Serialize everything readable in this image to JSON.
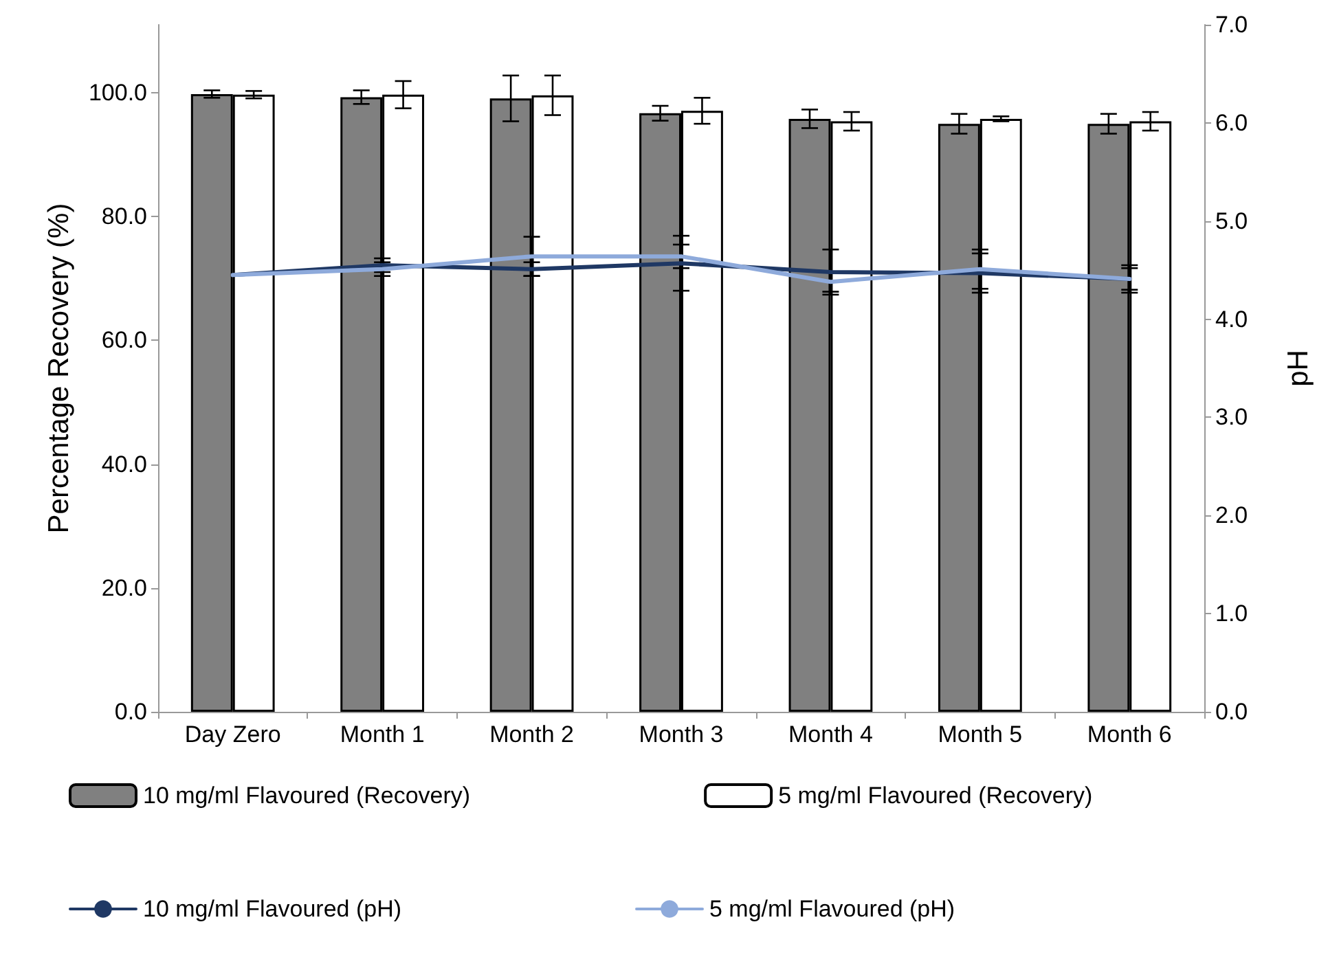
{
  "chart_data": {
    "type": "bar",
    "ylabel": "Percentage Recovery (%)",
    "y2label": "pH",
    "categories": [
      "Day Zero",
      "Month 1",
      "Month 2",
      "Month 3",
      "Month 4",
      "Month 5",
      "Month 6"
    ],
    "series": [
      {
        "name": "10 mg/ml Flavoured (Recovery)",
        "color": "#808080",
        "values": [
          99.8,
          99.3,
          99.1,
          96.7,
          95.8,
          95.0,
          95.0
        ],
        "errors": [
          0.6,
          1.1,
          3.7,
          1.2,
          1.5,
          1.6,
          1.6
        ]
      },
      {
        "name": "5 mg/ml Flavoured (Recovery)",
        "color": "#ffffff",
        "values": [
          99.7,
          99.7,
          99.6,
          97.1,
          95.4,
          95.8,
          95.4
        ],
        "errors": [
          0.6,
          2.2,
          3.2,
          2.1,
          1.5,
          0.4,
          1.5
        ]
      },
      {
        "name": "10 mg/ml Flavoured (pH)",
        "type": "line",
        "axis": "y2",
        "color": "#1f3864",
        "values": [
          4.45,
          4.55,
          4.51,
          4.57,
          4.48,
          4.47,
          4.41
        ],
        "errors": [
          null,
          0.07,
          0.07,
          0.28,
          0.23,
          0.2,
          0.14
        ]
      },
      {
        "name": "5 mg/ml Flavoured (pH)",
        "type": "line",
        "axis": "y2",
        "color": "#8eaadb",
        "values": [
          4.45,
          4.51,
          4.64,
          4.64,
          4.38,
          4.51,
          4.41
        ],
        "errors": [
          null,
          0.07,
          0.2,
          0.12,
          0.1,
          0.2,
          0.11
        ]
      }
    ],
    "ylim": [
      0,
      111
    ],
    "yticks": [
      {
        "value": 0,
        "label": "0.0"
      },
      {
        "value": 20,
        "label": "20.0"
      },
      {
        "value": 40,
        "label": "40.0"
      },
      {
        "value": 60,
        "label": "60.0"
      },
      {
        "value": 80,
        "label": "80.0"
      },
      {
        "value": 100,
        "label": "100.0"
      }
    ],
    "y2lim": [
      0,
      7
    ],
    "y2ticks": [
      {
        "value": 0,
        "label": "0.0"
      },
      {
        "value": 1,
        "label": "1.0"
      },
      {
        "value": 2,
        "label": "2.0"
      },
      {
        "value": 3,
        "label": "3.0"
      },
      {
        "value": 4,
        "label": "4.0"
      },
      {
        "value": 5,
        "label": "5.0"
      },
      {
        "value": 6,
        "label": "6.0"
      },
      {
        "value": 7,
        "label": "7.0"
      }
    ],
    "grid": false,
    "legend": "bottom",
    "marker": "none"
  }
}
